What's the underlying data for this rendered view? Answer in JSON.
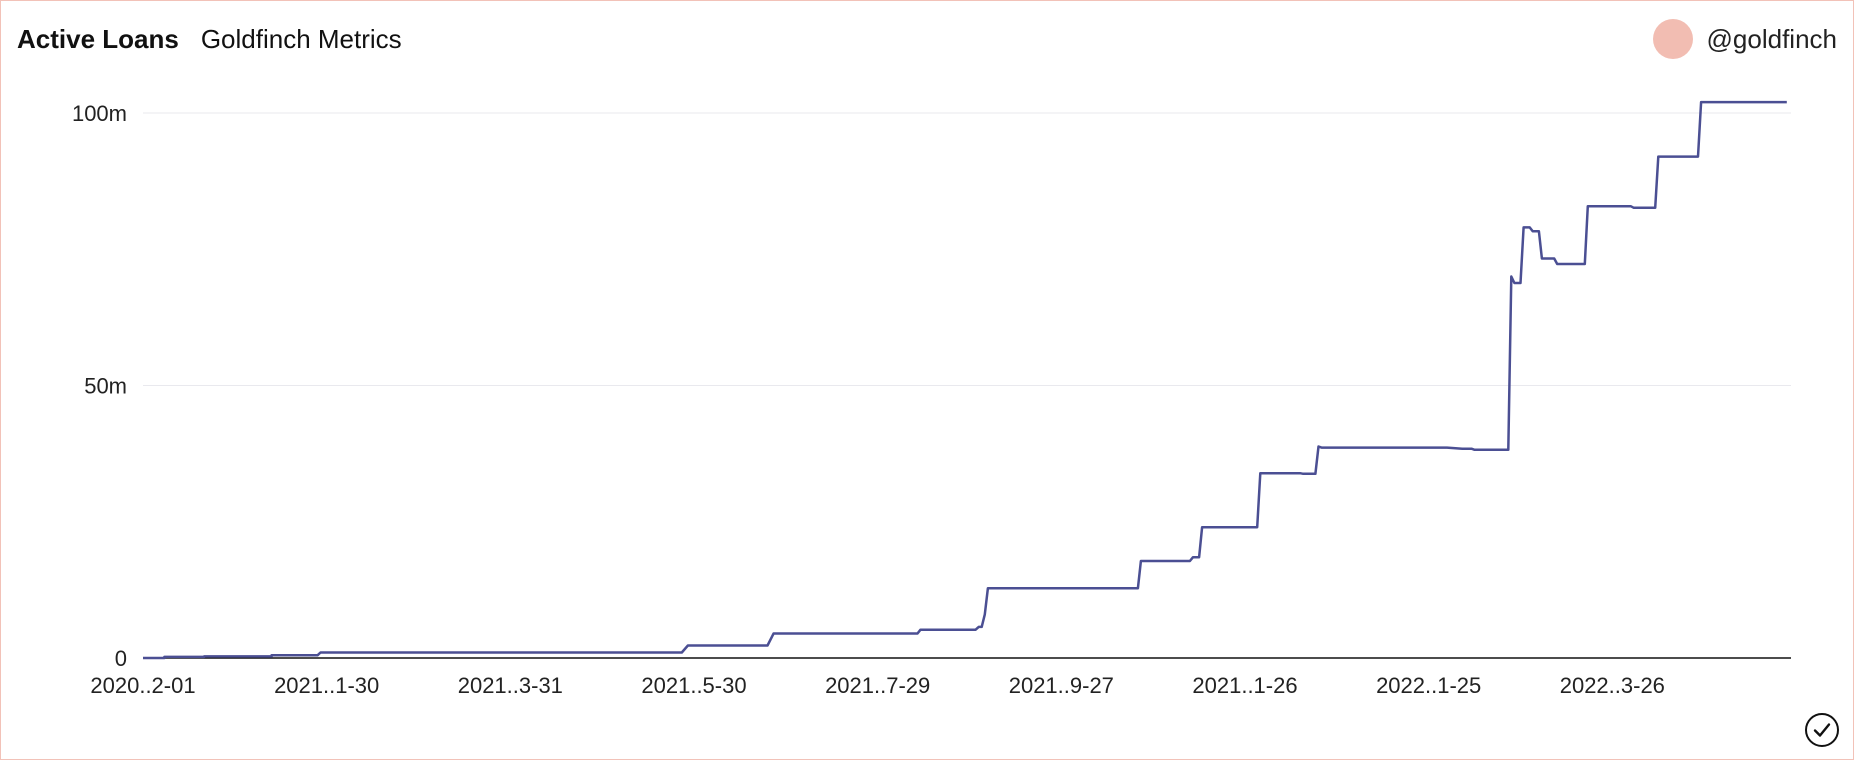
{
  "header": {
    "title": "Active Loans",
    "subtitle": "Goldfinch Metrics",
    "handle": "@goldfinch"
  },
  "colors": {
    "line": "#4b4f93",
    "avatar": "#f2bdb2",
    "border": "#f2c2b8"
  },
  "icons": {
    "avatar": "avatar-circle",
    "status": "check-circle-icon"
  },
  "chart_data": {
    "type": "line",
    "title": "Active Loans",
    "xlabel": "",
    "ylabel": "",
    "ylim": [
      0,
      100000000
    ],
    "y_ticks": [
      {
        "value": 0,
        "label": "0"
      },
      {
        "value": 50000000,
        "label": "50m"
      },
      {
        "value": 100000000,
        "label": "100m"
      }
    ],
    "x_tick_labels": [
      "2020..2-01",
      "2021..1-30",
      "2021..3-31",
      "2021..5-30",
      "2021..7-29",
      "2021..9-27",
      "2021..1-26",
      "2022..1-25",
      "2022..3-26"
    ],
    "x_tick_offsets": [
      0,
      60,
      120,
      180,
      240,
      300,
      360,
      420,
      480
    ],
    "x_range": [
      0,
      540
    ],
    "grid": true,
    "series": [
      {
        "values": [
          [
            0,
            0
          ],
          [
            7,
            0
          ],
          [
            7,
            200000
          ],
          [
            20,
            200000
          ],
          [
            20,
            300000
          ],
          [
            42,
            300000
          ],
          [
            42,
            500000
          ],
          [
            57,
            500000
          ],
          [
            58,
            1000000
          ],
          [
            176,
            1000000
          ],
          [
            178,
            2300000
          ],
          [
            204,
            2300000
          ],
          [
            206,
            4500000
          ],
          [
            253,
            4500000
          ],
          [
            254,
            5200000
          ],
          [
            272,
            5200000
          ],
          [
            273,
            5700000
          ],
          [
            274,
            5700000
          ],
          [
            275,
            8000000
          ],
          [
            276,
            12800000
          ],
          [
            325,
            12800000
          ],
          [
            326,
            17800000
          ],
          [
            342,
            17800000
          ],
          [
            343,
            18500000
          ],
          [
            345,
            18500000
          ],
          [
            346,
            24000000
          ],
          [
            364,
            24000000
          ],
          [
            365,
            33900000
          ],
          [
            378,
            33900000
          ],
          [
            379,
            33800000
          ],
          [
            383,
            33800000
          ],
          [
            384,
            38800000
          ],
          [
            385,
            38600000
          ],
          [
            426,
            38600000
          ],
          [
            431,
            38400000
          ],
          [
            434,
            38400000
          ],
          [
            435,
            38200000
          ],
          [
            446,
            38200000
          ],
          [
            447,
            70000000
          ],
          [
            448,
            68800000
          ],
          [
            450,
            68800000
          ],
          [
            451,
            79000000
          ],
          [
            453,
            79000000
          ],
          [
            454,
            78300000
          ],
          [
            456,
            78300000
          ],
          [
            457,
            73300000
          ],
          [
            461,
            73300000
          ],
          [
            462,
            72300000
          ],
          [
            471,
            72300000
          ],
          [
            472,
            82900000
          ],
          [
            486,
            82900000
          ],
          [
            487,
            82600000
          ],
          [
            494,
            82600000
          ],
          [
            495,
            92000000
          ],
          [
            508,
            92000000
          ],
          [
            509,
            102000000
          ],
          [
            537,
            102000000
          ]
        ]
      }
    ]
  }
}
